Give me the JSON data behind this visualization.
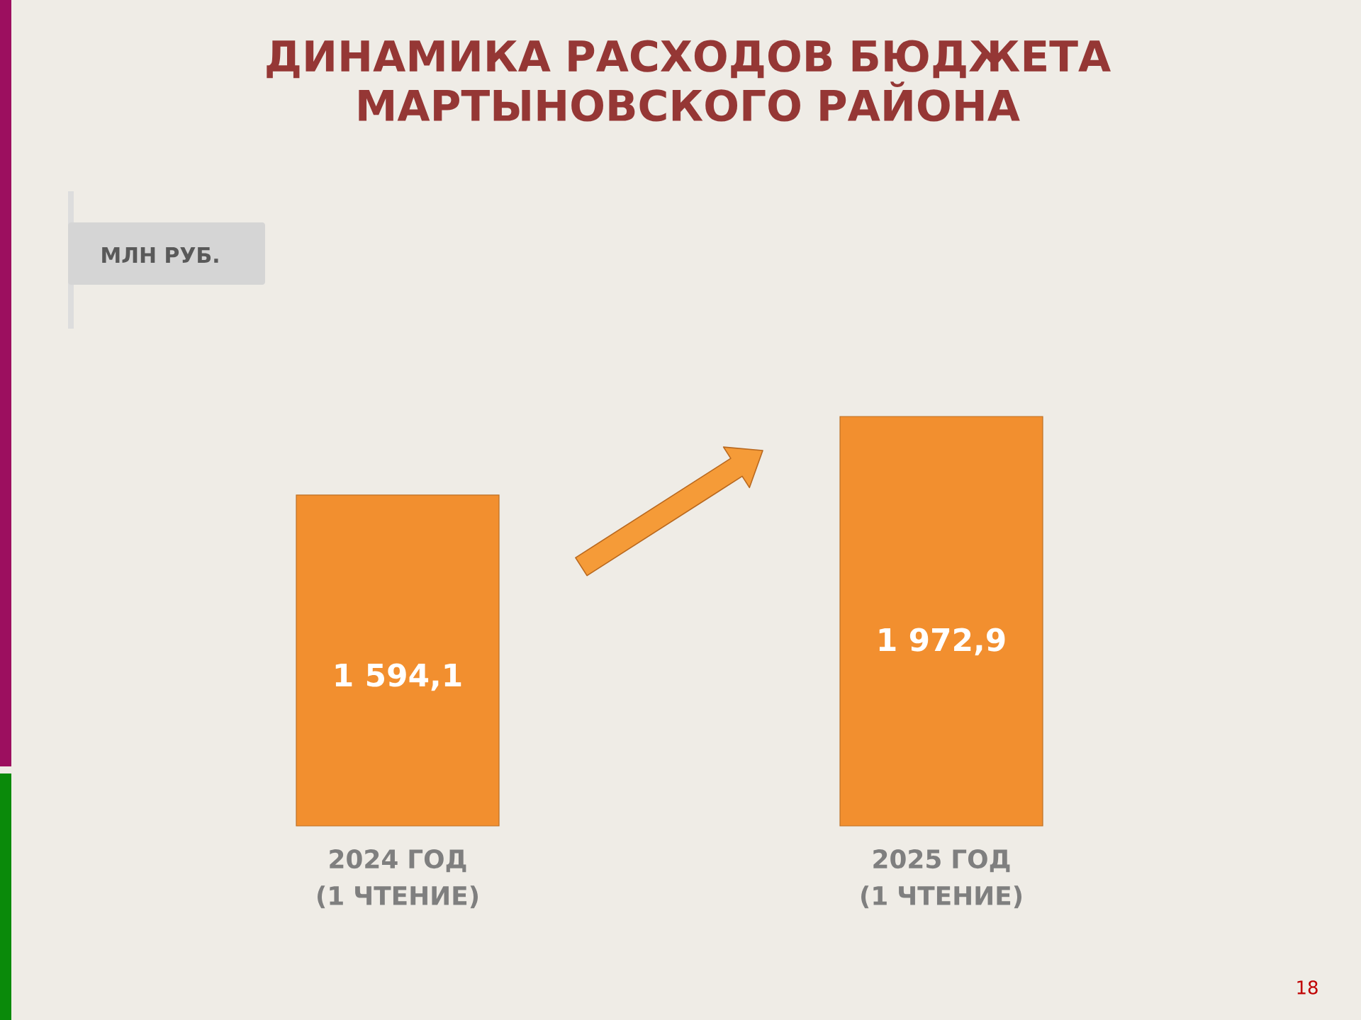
{
  "chart_data": {
    "type": "bar",
    "title": "ДИНАМИКА РАСХОДОВ БЮДЖЕТА МАРТЫНОВСКОГО РАЙОНА",
    "categories": [
      "2024 ГОД (1 ЧТЕНИЕ)",
      "2025 ГОД (1 ЧТЕНИЕ)"
    ],
    "values": [
      1594.1,
      1972.9
    ],
    "value_labels": [
      "1 594,1",
      "1 972,9"
    ],
    "color": "#f28f2f",
    "annotations": [
      "МЛН РУБ.",
      "18"
    ]
  }
}
